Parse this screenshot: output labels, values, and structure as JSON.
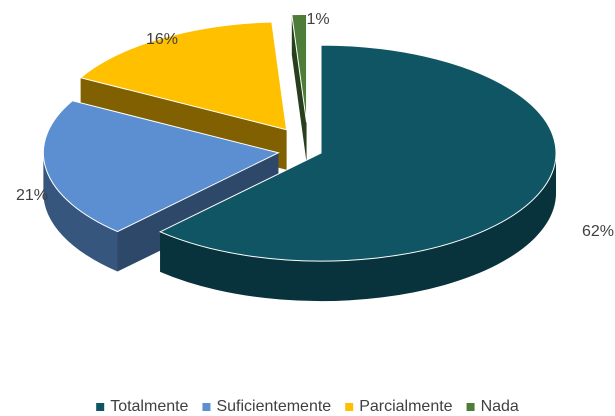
{
  "chart_data": {
    "type": "pie3d",
    "categories": [
      "Totalmente",
      "Suficientemente",
      "Parcialmente",
      "Nada"
    ],
    "values": [
      62,
      21,
      16,
      1
    ],
    "value_labels": [
      "62%",
      "21%",
      "16%",
      "1%"
    ],
    "colors": [
      "#0f5564",
      "#5b8fd1",
      "#ffc000",
      "#4e7d3a"
    ],
    "legend": "bottom"
  }
}
